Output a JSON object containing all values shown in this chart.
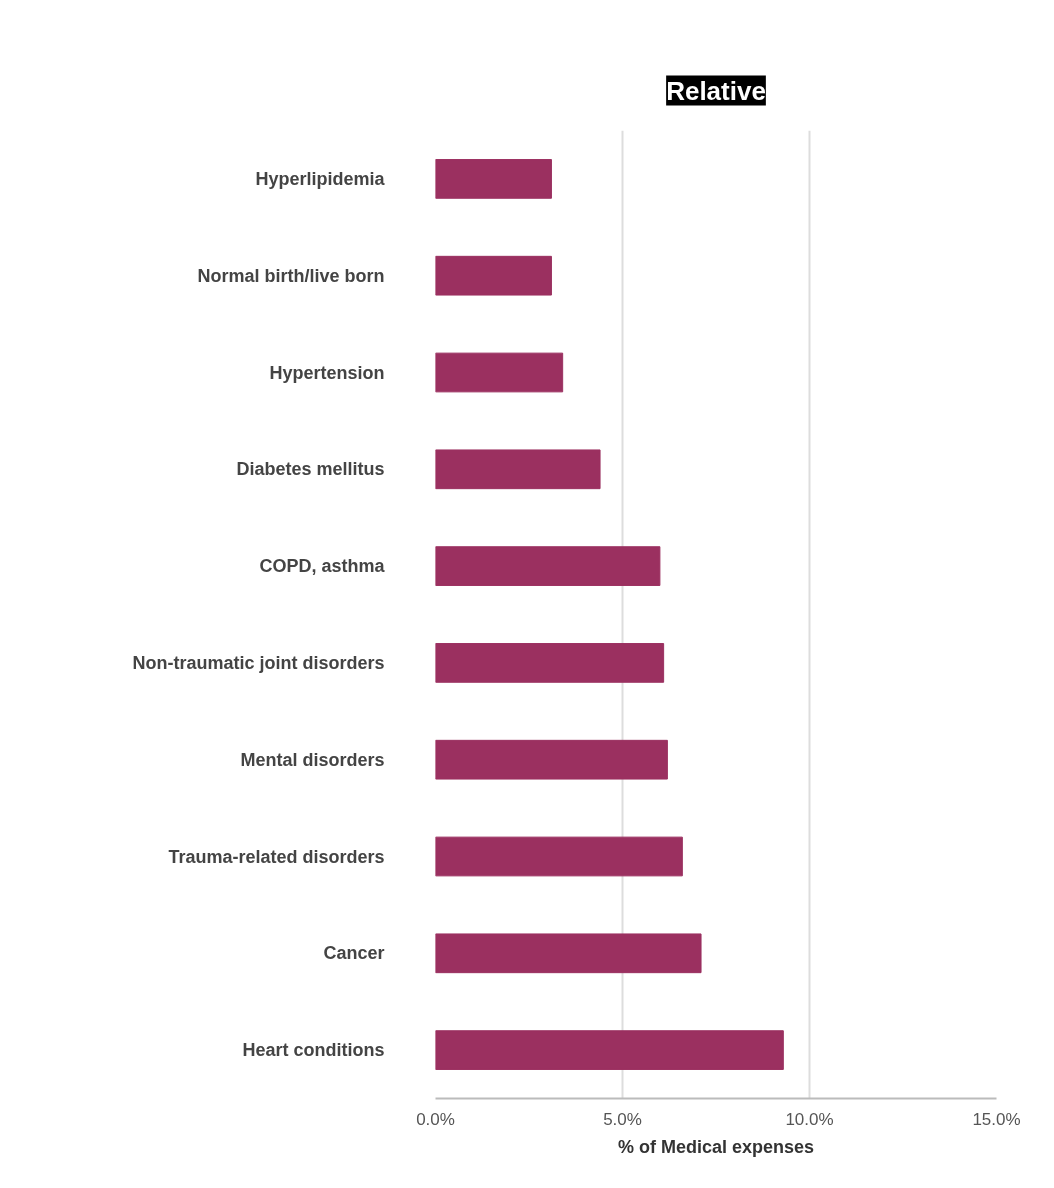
{
  "chart_data": {
    "type": "bar",
    "orientation": "horizontal",
    "title": "Relative",
    "xlabel": "% of Medical expenses",
    "categories": [
      "Hyperlipidemia",
      "Normal birth/live born",
      "Hypertension",
      "Diabetes mellitus",
      "COPD, asthma",
      "Non-traumatic joint disorders",
      "Mental disorders",
      "Trauma-related disorders",
      "Cancer",
      "Heart conditions"
    ],
    "values": [
      3.1,
      3.1,
      3.4,
      4.4,
      6.0,
      6.1,
      6.2,
      6.6,
      7.1,
      9.3
    ],
    "color": "#9b3060",
    "xlim": [
      0,
      15
    ],
    "xticks": [
      {
        "value": 0,
        "label": "0.0%"
      },
      {
        "value": 5,
        "label": "5.0%"
      },
      {
        "value": 10,
        "label": "10.0%"
      },
      {
        "value": 15,
        "label": "15.0%"
      }
    ],
    "grid": "x"
  }
}
